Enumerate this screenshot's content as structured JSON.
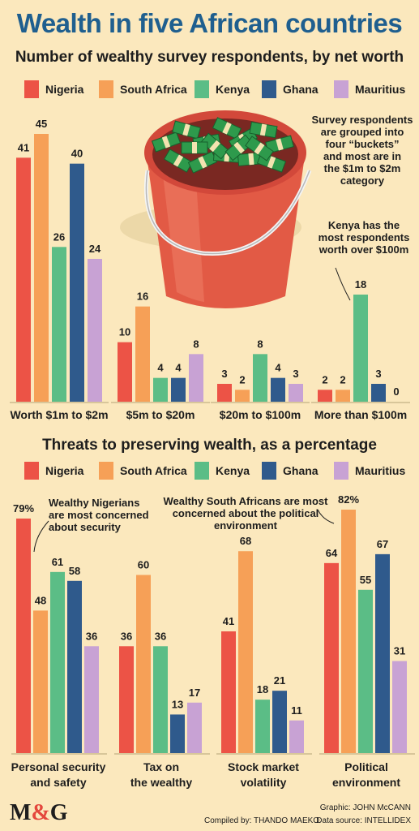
{
  "title": "Wealth in five African countries",
  "colors": {
    "Nigeria": "#ec5346",
    "South Africa": "#f6a057",
    "Kenya": "#5bbd86",
    "Ghana": "#2f5a8c",
    "Mauritius": "#c8a2d4"
  },
  "chart_data": [
    {
      "type": "bar",
      "title": "Number of wealthy survey respondents, by net worth",
      "categories": [
        "Worth $1m to $2m",
        "$5m to $20m",
        "$20m to $100m",
        "More than $100m"
      ],
      "series": [
        {
          "name": "Nigeria",
          "values": [
            41,
            10,
            3,
            2
          ]
        },
        {
          "name": "South Africa",
          "values": [
            45,
            16,
            2,
            2
          ]
        },
        {
          "name": "Kenya",
          "values": [
            26,
            4,
            8,
            18
          ]
        },
        {
          "name": "Ghana",
          "values": [
            40,
            4,
            4,
            3
          ]
        },
        {
          "name": "Mauritius",
          "values": [
            24,
            8,
            3,
            0
          ]
        }
      ],
      "value_labels": [
        [
          "41",
          "45",
          "26",
          "40",
          "24"
        ],
        [
          "10",
          "16",
          "4",
          "4",
          "8"
        ],
        [
          "3",
          "2",
          "8",
          "4",
          "3"
        ],
        [
          "2",
          "2",
          "18",
          "3",
          "0"
        ]
      ],
      "ylim": [
        0,
        45
      ],
      "legend_position": "top",
      "grid": false
    },
    {
      "type": "bar",
      "title": "Threats to preserving wealth, as a percentage",
      "categories": [
        "Personal security and safety",
        "Tax on the wealthy",
        "Stock market volatility",
        "Political environment"
      ],
      "series": [
        {
          "name": "Nigeria",
          "values": [
            79,
            36,
            41,
            64
          ]
        },
        {
          "name": "South Africa",
          "values": [
            48,
            60,
            68,
            82
          ]
        },
        {
          "name": "Kenya",
          "values": [
            61,
            36,
            18,
            55
          ]
        },
        {
          "name": "Ghana",
          "values": [
            58,
            13,
            21,
            67
          ]
        },
        {
          "name": "Mauritius",
          "values": [
            36,
            17,
            11,
            31
          ]
        }
      ],
      "value_labels": [
        [
          "79%",
          "48",
          "61",
          "58",
          "36"
        ],
        [
          "36",
          "60",
          "36",
          "13",
          "17"
        ],
        [
          "41",
          "68",
          "18",
          "21",
          "11"
        ],
        [
          "64",
          "82%",
          "55",
          "67",
          "31"
        ]
      ],
      "ylim": [
        0,
        82
      ],
      "legend_position": "top",
      "grid": false
    }
  ],
  "chart1_category_labels": [
    [
      "Worth $1m to $2m"
    ],
    [
      "$5m to $20m"
    ],
    [
      "$20m to $100m"
    ],
    [
      "More than $100m"
    ]
  ],
  "chart2_category_labels": [
    [
      "Personal security",
      "and safety"
    ],
    [
      "Tax on",
      "the wealthy"
    ],
    [
      "Stock market",
      "volatility"
    ],
    [
      "Political",
      "environment"
    ]
  ],
  "annotations": {
    "buckets": [
      "Survey respondents",
      "are grouped into",
      "four “buckets”",
      "and most are in",
      "the $1m to $2m",
      "category"
    ],
    "kenya": [
      "Kenya has the",
      "most respondents",
      "worth over $100m"
    ],
    "nigeria": [
      "Wealthy Nigerians",
      "are most concerned",
      "about security"
    ],
    "southafrica": [
      "Wealthy South Africans are most",
      "concerned about the political",
      "environment"
    ]
  },
  "footer": {
    "graphic": "Graphic: JOHN McCANN",
    "compiled": "Compiled by: THANDO MAEKO",
    "source": "Data source: INTELLIDEX"
  },
  "logo": {
    "m": "M",
    "amp": "&",
    "g": "G"
  }
}
